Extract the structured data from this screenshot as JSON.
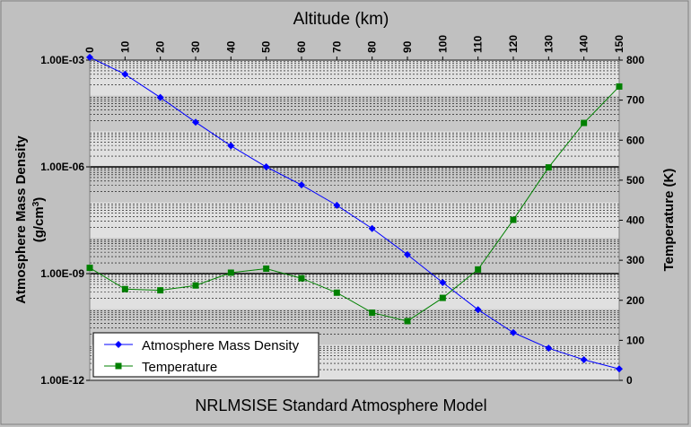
{
  "chart_data": {
    "type": "line",
    "title": "NRLMSISE Standard Atmosphere Model",
    "xlabel": "Altitude (km)",
    "ylabel_left_line1": "Atmosphere Mass Density",
    "ylabel_left_line2": "(g/cm",
    "ylabel_left_sup": "3",
    "ylabel_left_close": ")",
    "ylabel_right": "Temperature (K)",
    "x": [
      0,
      10,
      20,
      30,
      40,
      50,
      60,
      70,
      80,
      90,
      100,
      110,
      120,
      130,
      140,
      150
    ],
    "x_ticks": [
      "0",
      "10",
      "20",
      "30",
      "40",
      "50",
      "60",
      "70",
      "80",
      "90",
      "100",
      "110",
      "120",
      "130",
      "140",
      "150"
    ],
    "xlim": [
      0,
      150
    ],
    "y_left": {
      "scale": "log",
      "lim": [
        1e-12,
        0.001
      ],
      "tick_labels": [
        "1.00E-03",
        "1.00E-06",
        "1.00E-09",
        "1.00E-12"
      ],
      "tick_values": [
        0.001,
        1e-06,
        1e-09,
        1e-12
      ]
    },
    "y_right": {
      "scale": "linear",
      "lim": [
        0,
        800
      ],
      "ticks": [
        "0",
        "100",
        "200",
        "300",
        "400",
        "500",
        "600",
        "700",
        "800"
      ]
    },
    "grid": true,
    "legend": "bottom-left",
    "series": [
      {
        "name": "Atmosphere Mass Density",
        "axis": "left",
        "color": "#0000ff",
        "marker": "diamond",
        "values": [
          0.0012,
          0.0004,
          8.9e-05,
          1.8e-05,
          3.9e-06,
          1e-06,
          3.1e-07,
          8.3e-08,
          1.85e-08,
          3.4e-09,
          5.6e-10,
          9.7e-11,
          2.2e-11,
          8e-12,
          3.8e-12,
          2.1e-12
        ]
      },
      {
        "name": "Temperature",
        "axis": "right",
        "color": "#008000",
        "marker": "square",
        "values": [
          281,
          228,
          225,
          237,
          269,
          279,
          255,
          219,
          169,
          148,
          206,
          277,
          401,
          532,
          643,
          734
        ]
      }
    ]
  }
}
